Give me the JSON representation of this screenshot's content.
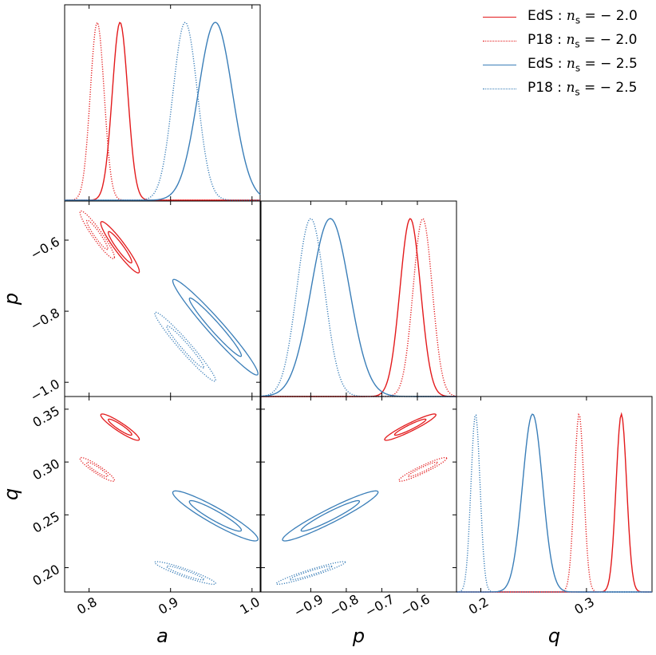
{
  "chart_data": {
    "type": "corner",
    "parameters": [
      "a",
      "p",
      "q"
    ],
    "axis_labels": {
      "a": "a",
      "p": "p",
      "q": "q"
    },
    "ranges": {
      "a": [
        0.77,
        1.01
      ],
      "p": [
        -1.04,
        -0.49
      ],
      "q": [
        0.177,
        0.362
      ]
    },
    "ticks": {
      "a": {
        "values": [
          0.8,
          0.9,
          1.0
        ],
        "labels": [
          "0.8",
          "0.9",
          "1.0"
        ]
      },
      "p": {
        "values": [
          -0.9,
          -0.8,
          -0.7,
          -0.6
        ],
        "labels": [
          "−0.9",
          "−0.8",
          "−0.7",
          "−0.6"
        ]
      },
      "p_y": {
        "values": [
          -0.6,
          -0.8,
          -1.0
        ],
        "labels": [
          "−0.6",
          "−0.8",
          "−1.0"
        ]
      },
      "q": {
        "values": [
          0.2,
          0.3
        ],
        "labels": [
          "0.2",
          "0.3"
        ]
      },
      "q_y": {
        "values": [
          0.2,
          0.25,
          0.3,
          0.35
        ],
        "labels": [
          "0.20",
          "0.25",
          "0.30",
          "0.35"
        ]
      }
    },
    "series": [
      {
        "name": "EdS: n_s = −2.0",
        "label_prefix": "EdS",
        "ns": "− 2.0",
        "color": "#e31a1c",
        "style": "solid",
        "mean": {
          "a": 0.838,
          "p": -0.62,
          "q": 0.333
        },
        "sigma": {
          "a": 0.0095,
          "p": 0.029,
          "q": 0.005
        },
        "corr": {
          "ap": -0.94,
          "aq": -0.92,
          "pq": 0.94
        }
      },
      {
        "name": "P18: n_s = −2.0",
        "label_prefix": "P18",
        "ns": "− 2.0",
        "color": "#e31a1c",
        "style": "dotted",
        "mean": {
          "a": 0.81,
          "p": -0.585,
          "q": 0.293
        },
        "sigma": {
          "a": 0.0085,
          "p": 0.027,
          "q": 0.0045
        },
        "corr": {
          "ap": -0.94,
          "aq": -0.92,
          "pq": 0.94
        }
      },
      {
        "name": "EdS: n_s = −2.5",
        "label_prefix": "EdS",
        "ns": "− 2.5",
        "color": "#3a7eb8",
        "style": "solid",
        "mean": {
          "a": 0.955,
          "p": -0.845,
          "q": 0.249
        },
        "sigma": {
          "a": 0.021,
          "p": 0.054,
          "q": 0.0095
        },
        "corr": {
          "ap": -0.97,
          "aq": -0.93,
          "pq": 0.95
        }
      },
      {
        "name": "P18: n_s = −2.5",
        "label_prefix": "P18",
        "ns": "− 2.5",
        "color": "#3a7eb8",
        "style": "dotted",
        "mean": {
          "a": 0.918,
          "p": -0.9,
          "q": 0.195
        },
        "sigma": {
          "a": 0.015,
          "p": 0.039,
          "q": 0.0043
        },
        "corr": {
          "ap": -0.97,
          "aq": -0.93,
          "pq": 0.95
        }
      }
    ],
    "legend_placement": "top-right",
    "grid": false
  }
}
